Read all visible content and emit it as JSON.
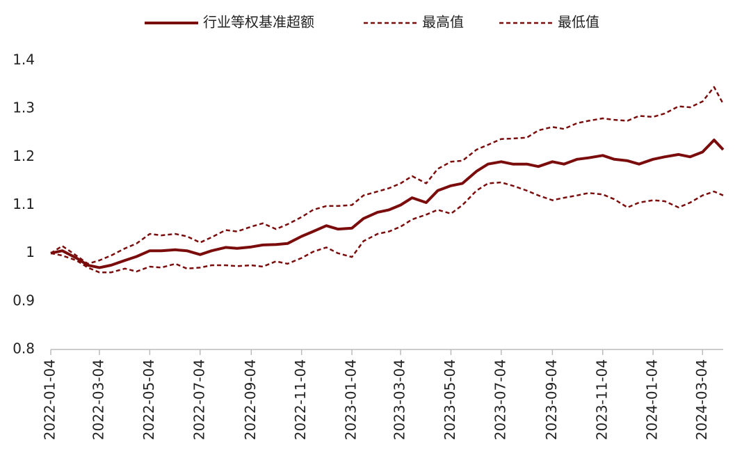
{
  "chart_data": {
    "type": "line",
    "x": [
      "2022-01-04",
      "2022-01-18",
      "2022-02-04",
      "2022-02-18",
      "2022-03-04",
      "2022-03-18",
      "2022-04-04",
      "2022-04-18",
      "2022-05-04",
      "2022-05-18",
      "2022-06-04",
      "2022-06-18",
      "2022-07-04",
      "2022-07-18",
      "2022-08-04",
      "2022-08-18",
      "2022-09-04",
      "2022-09-18",
      "2022-10-04",
      "2022-10-18",
      "2022-11-04",
      "2022-11-18",
      "2022-12-04",
      "2022-12-18",
      "2023-01-04",
      "2023-01-18",
      "2023-02-04",
      "2023-02-18",
      "2023-03-04",
      "2023-03-18",
      "2023-04-04",
      "2023-04-18",
      "2023-05-04",
      "2023-05-18",
      "2023-06-04",
      "2023-06-18",
      "2023-07-04",
      "2023-07-18",
      "2023-08-04",
      "2023-08-18",
      "2023-09-04",
      "2023-09-18",
      "2023-10-04",
      "2023-10-18",
      "2023-11-04",
      "2023-11-18",
      "2023-12-04",
      "2023-12-18",
      "2024-01-04",
      "2024-01-18",
      "2024-02-04",
      "2024-02-18",
      "2024-03-04",
      "2024-03-18",
      "2024-03-29"
    ],
    "series": [
      {
        "name": "行业等权基准超额",
        "color": "#7b0c0c",
        "dash": false,
        "values": [
          1.0,
          1.005,
          0.99,
          0.975,
          0.97,
          0.975,
          0.985,
          0.993,
          1.005,
          1.005,
          1.007,
          1.005,
          0.997,
          1.005,
          1.012,
          1.01,
          1.013,
          1.017,
          1.018,
          1.02,
          1.035,
          1.045,
          1.057,
          1.05,
          1.052,
          1.072,
          1.085,
          1.09,
          1.1,
          1.115,
          1.105,
          1.13,
          1.14,
          1.145,
          1.17,
          1.185,
          1.19,
          1.185,
          1.185,
          1.18,
          1.19,
          1.185,
          1.195,
          1.198,
          1.203,
          1.195,
          1.192,
          1.185,
          1.195,
          1.2,
          1.205,
          1.2,
          1.21,
          1.235,
          1.215
        ]
      },
      {
        "name": "最高值",
        "color": "#7b0c0c",
        "dash": true,
        "values": [
          1.0,
          1.015,
          0.995,
          0.978,
          0.985,
          0.995,
          1.01,
          1.02,
          1.04,
          1.037,
          1.04,
          1.035,
          1.022,
          1.033,
          1.048,
          1.045,
          1.055,
          1.062,
          1.05,
          1.06,
          1.075,
          1.09,
          1.098,
          1.098,
          1.1,
          1.12,
          1.128,
          1.135,
          1.145,
          1.16,
          1.145,
          1.175,
          1.19,
          1.192,
          1.215,
          1.225,
          1.237,
          1.238,
          1.24,
          1.255,
          1.262,
          1.258,
          1.27,
          1.275,
          1.28,
          1.277,
          1.275,
          1.285,
          1.283,
          1.29,
          1.305,
          1.303,
          1.315,
          1.345,
          1.31
        ]
      },
      {
        "name": "最低值",
        "color": "#7b0c0c",
        "dash": true,
        "values": [
          1.0,
          0.995,
          0.985,
          0.97,
          0.96,
          0.96,
          0.968,
          0.962,
          0.972,
          0.97,
          0.978,
          0.968,
          0.97,
          0.975,
          0.975,
          0.973,
          0.975,
          0.972,
          0.983,
          0.978,
          0.99,
          1.003,
          1.012,
          1.0,
          0.992,
          1.025,
          1.04,
          1.045,
          1.055,
          1.07,
          1.08,
          1.09,
          1.082,
          1.1,
          1.13,
          1.145,
          1.147,
          1.14,
          1.13,
          1.12,
          1.11,
          1.115,
          1.12,
          1.125,
          1.122,
          1.112,
          1.095,
          1.105,
          1.11,
          1.108,
          1.095,
          1.105,
          1.12,
          1.128,
          1.12
        ]
      }
    ],
    "xlim": [
      "2022-01-04",
      "2024-03-29"
    ],
    "xticks": [
      "2022-01-04",
      "2022-03-04",
      "2022-05-04",
      "2022-07-04",
      "2022-09-04",
      "2022-11-04",
      "2023-01-04",
      "2023-03-04",
      "2023-05-04",
      "2023-07-04",
      "2023-09-04",
      "2023-11-04",
      "2024-01-04",
      "2024-03-04"
    ],
    "ylim": [
      0.8,
      1.4
    ],
    "yticks": [
      0.8,
      0.9,
      1,
      1.1,
      1.2,
      1.3,
      1.4
    ],
    "legend": "top"
  }
}
